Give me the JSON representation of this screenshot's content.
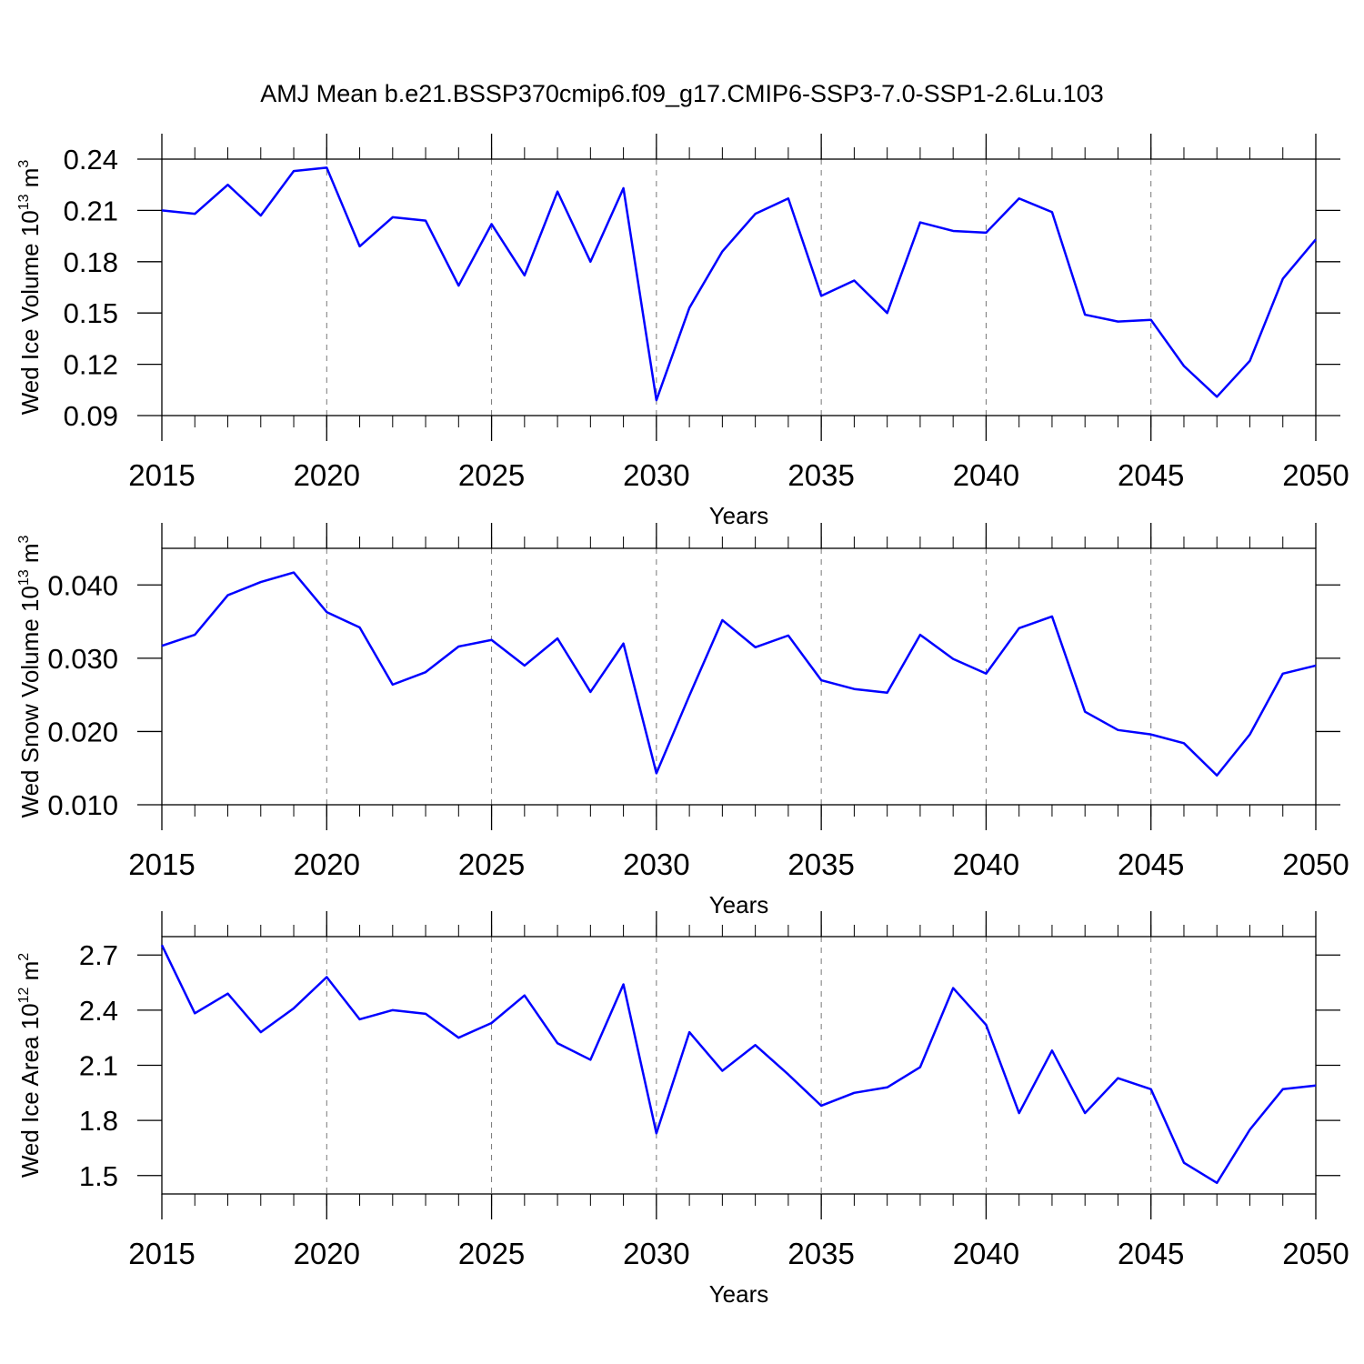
{
  "title": "AMJ Mean b.e21.BSSP370cmip6.f09_g17.CMIP6-SSP3-7.0-SSP1-2.6Lu.103",
  "chart_data": [
    {
      "type": "line",
      "color": "#0000ff",
      "xgrid": true,
      "x": [
        2015,
        2016,
        2017,
        2018,
        2019,
        2020,
        2021,
        2022,
        2023,
        2024,
        2025,
        2026,
        2027,
        2028,
        2029,
        2030,
        2031,
        2032,
        2033,
        2034,
        2035,
        2036,
        2037,
        2038,
        2039,
        2040,
        2041,
        2042,
        2043,
        2044,
        2045,
        2046,
        2047,
        2048,
        2049,
        2050
      ],
      "values": [
        0.21,
        0.208,
        0.225,
        0.207,
        0.233,
        0.235,
        0.189,
        0.206,
        0.204,
        0.166,
        0.202,
        0.172,
        0.221,
        0.18,
        0.223,
        0.099,
        0.153,
        0.186,
        0.208,
        0.217,
        0.16,
        0.169,
        0.15,
        0.203,
        0.198,
        0.197,
        0.217,
        0.209,
        0.149,
        0.145,
        0.146,
        0.119,
        0.101,
        0.122,
        0.17,
        0.193
      ],
      "xlim": [
        2015,
        2050
      ],
      "xticks": [
        2015,
        2020,
        2025,
        2030,
        2035,
        2040,
        2045,
        2050
      ],
      "x_label": "Years",
      "y_label": {
        "text": "Wed Ice Volume 10",
        "exp": "13",
        "unit": " m",
        "unit_exp": "3"
      },
      "ylim": [
        0.09,
        0.24
      ],
      "yticks": [
        0.09,
        0.12,
        0.15,
        0.18,
        0.21,
        0.24
      ]
    },
    {
      "type": "line",
      "color": "#0000ff",
      "xgrid": true,
      "x": [
        2015,
        2016,
        2017,
        2018,
        2019,
        2020,
        2021,
        2022,
        2023,
        2024,
        2025,
        2026,
        2027,
        2028,
        2029,
        2030,
        2031,
        2032,
        2033,
        2034,
        2035,
        2036,
        2037,
        2038,
        2039,
        2040,
        2041,
        2042,
        2043,
        2044,
        2045,
        2046,
        2047,
        2048,
        2049,
        2050
      ],
      "values": [
        0.0317,
        0.0332,
        0.0386,
        0.0404,
        0.0417,
        0.0363,
        0.0342,
        0.0264,
        0.0281,
        0.0316,
        0.0325,
        0.029,
        0.0327,
        0.0254,
        0.032,
        0.0143,
        0.0249,
        0.0352,
        0.0315,
        0.0331,
        0.027,
        0.0258,
        0.0253,
        0.0332,
        0.0299,
        0.0279,
        0.0341,
        0.0357,
        0.0227,
        0.0202,
        0.0196,
        0.0184,
        0.014,
        0.0196,
        0.0279,
        0.029
      ],
      "xlim": [
        2015,
        2050
      ],
      "xticks": [
        2015,
        2020,
        2025,
        2030,
        2035,
        2040,
        2045,
        2050
      ],
      "x_label": "Years",
      "y_label": {
        "text": "Wed Snow Volume 10",
        "exp": "13",
        "unit": " m",
        "unit_exp": "3"
      },
      "ylim": [
        0.01,
        0.045
      ],
      "yticks": [
        {
          "value": 0.01,
          "label": "0.010"
        },
        {
          "value": 0.02,
          "label": "0.020"
        },
        {
          "value": 0.03,
          "label": "0.030"
        },
        {
          "value": 0.04,
          "label": "0.040"
        }
      ]
    },
    {
      "type": "line",
      "color": "#0000ff",
      "xgrid": true,
      "x": [
        2015,
        2016,
        2017,
        2018,
        2019,
        2020,
        2021,
        2022,
        2023,
        2024,
        2025,
        2026,
        2027,
        2028,
        2029,
        2030,
        2031,
        2032,
        2033,
        2034,
        2035,
        2036,
        2037,
        2038,
        2039,
        2040,
        2041,
        2042,
        2043,
        2044,
        2045,
        2046,
        2047,
        2048,
        2049,
        2050
      ],
      "values": [
        2.754,
        2.383,
        2.49,
        2.28,
        2.41,
        2.58,
        2.35,
        2.4,
        2.38,
        2.25,
        2.33,
        2.48,
        2.22,
        2.13,
        2.54,
        1.73,
        2.28,
        2.07,
        2.21,
        2.05,
        1.88,
        1.95,
        1.98,
        2.09,
        2.52,
        2.32,
        1.84,
        2.18,
        1.84,
        2.03,
        1.97,
        1.57,
        1.46,
        1.75,
        1.97,
        1.99
      ],
      "xlim": [
        2015,
        2050
      ],
      "xticks": [
        2015,
        2020,
        2025,
        2030,
        2035,
        2040,
        2045,
        2050
      ],
      "x_label": "Years",
      "y_label": {
        "text": "Wed Ice Area 10",
        "exp": "12",
        "unit": " m",
        "unit_exp": "2"
      },
      "ylim": [
        1.4,
        2.8
      ],
      "yticks": [
        1.5,
        1.8,
        2.1,
        2.4,
        2.7
      ]
    }
  ]
}
